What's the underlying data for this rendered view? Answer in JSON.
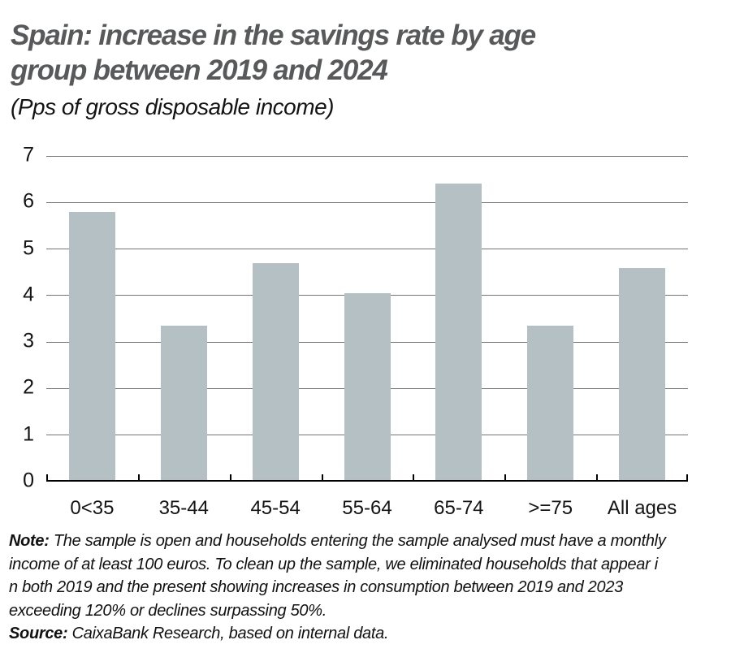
{
  "header": {
    "title_line1": "Spain: increase in the savings rate by age",
    "title_line2": "group between 2019 and 2024",
    "subtitle": "(Pps of gross disposable income)"
  },
  "chart_data": {
    "type": "bar",
    "title": "Spain: increase in the savings rate by age group between 2019 and 2024",
    "subtitle": "(Pps of gross disposable income)",
    "categories": [
      "0<35",
      "35-44",
      "45-54",
      "55-64",
      "65-74",
      ">=75",
      "All ages"
    ],
    "values": [
      5.8,
      3.35,
      4.7,
      4.05,
      6.4,
      3.35,
      4.6
    ],
    "xlabel": "",
    "ylabel": "",
    "ylim": [
      0,
      7
    ],
    "yticks": [
      0,
      1,
      2,
      3,
      4,
      5,
      6,
      7
    ],
    "grid": true,
    "legend": "none",
    "bar_color": "#b4c0c4",
    "grid_color": "#757575",
    "axis_color": "#000000",
    "title_color": "#58595b"
  },
  "footer": {
    "note_label": "Note:",
    "note_lines": [
      "The sample is open and households entering the sample analysed must have a monthly",
      "income of at least 100 euros. To clean up the sample, we eliminated households that appear i",
      "n both 2019 and the present showing increases in consumption between 2019 and 2023",
      "exceeding 120% or declines surpassing 50%."
    ],
    "source_label": "Source:",
    "source_text": "CaixaBank Research, based on internal data."
  }
}
